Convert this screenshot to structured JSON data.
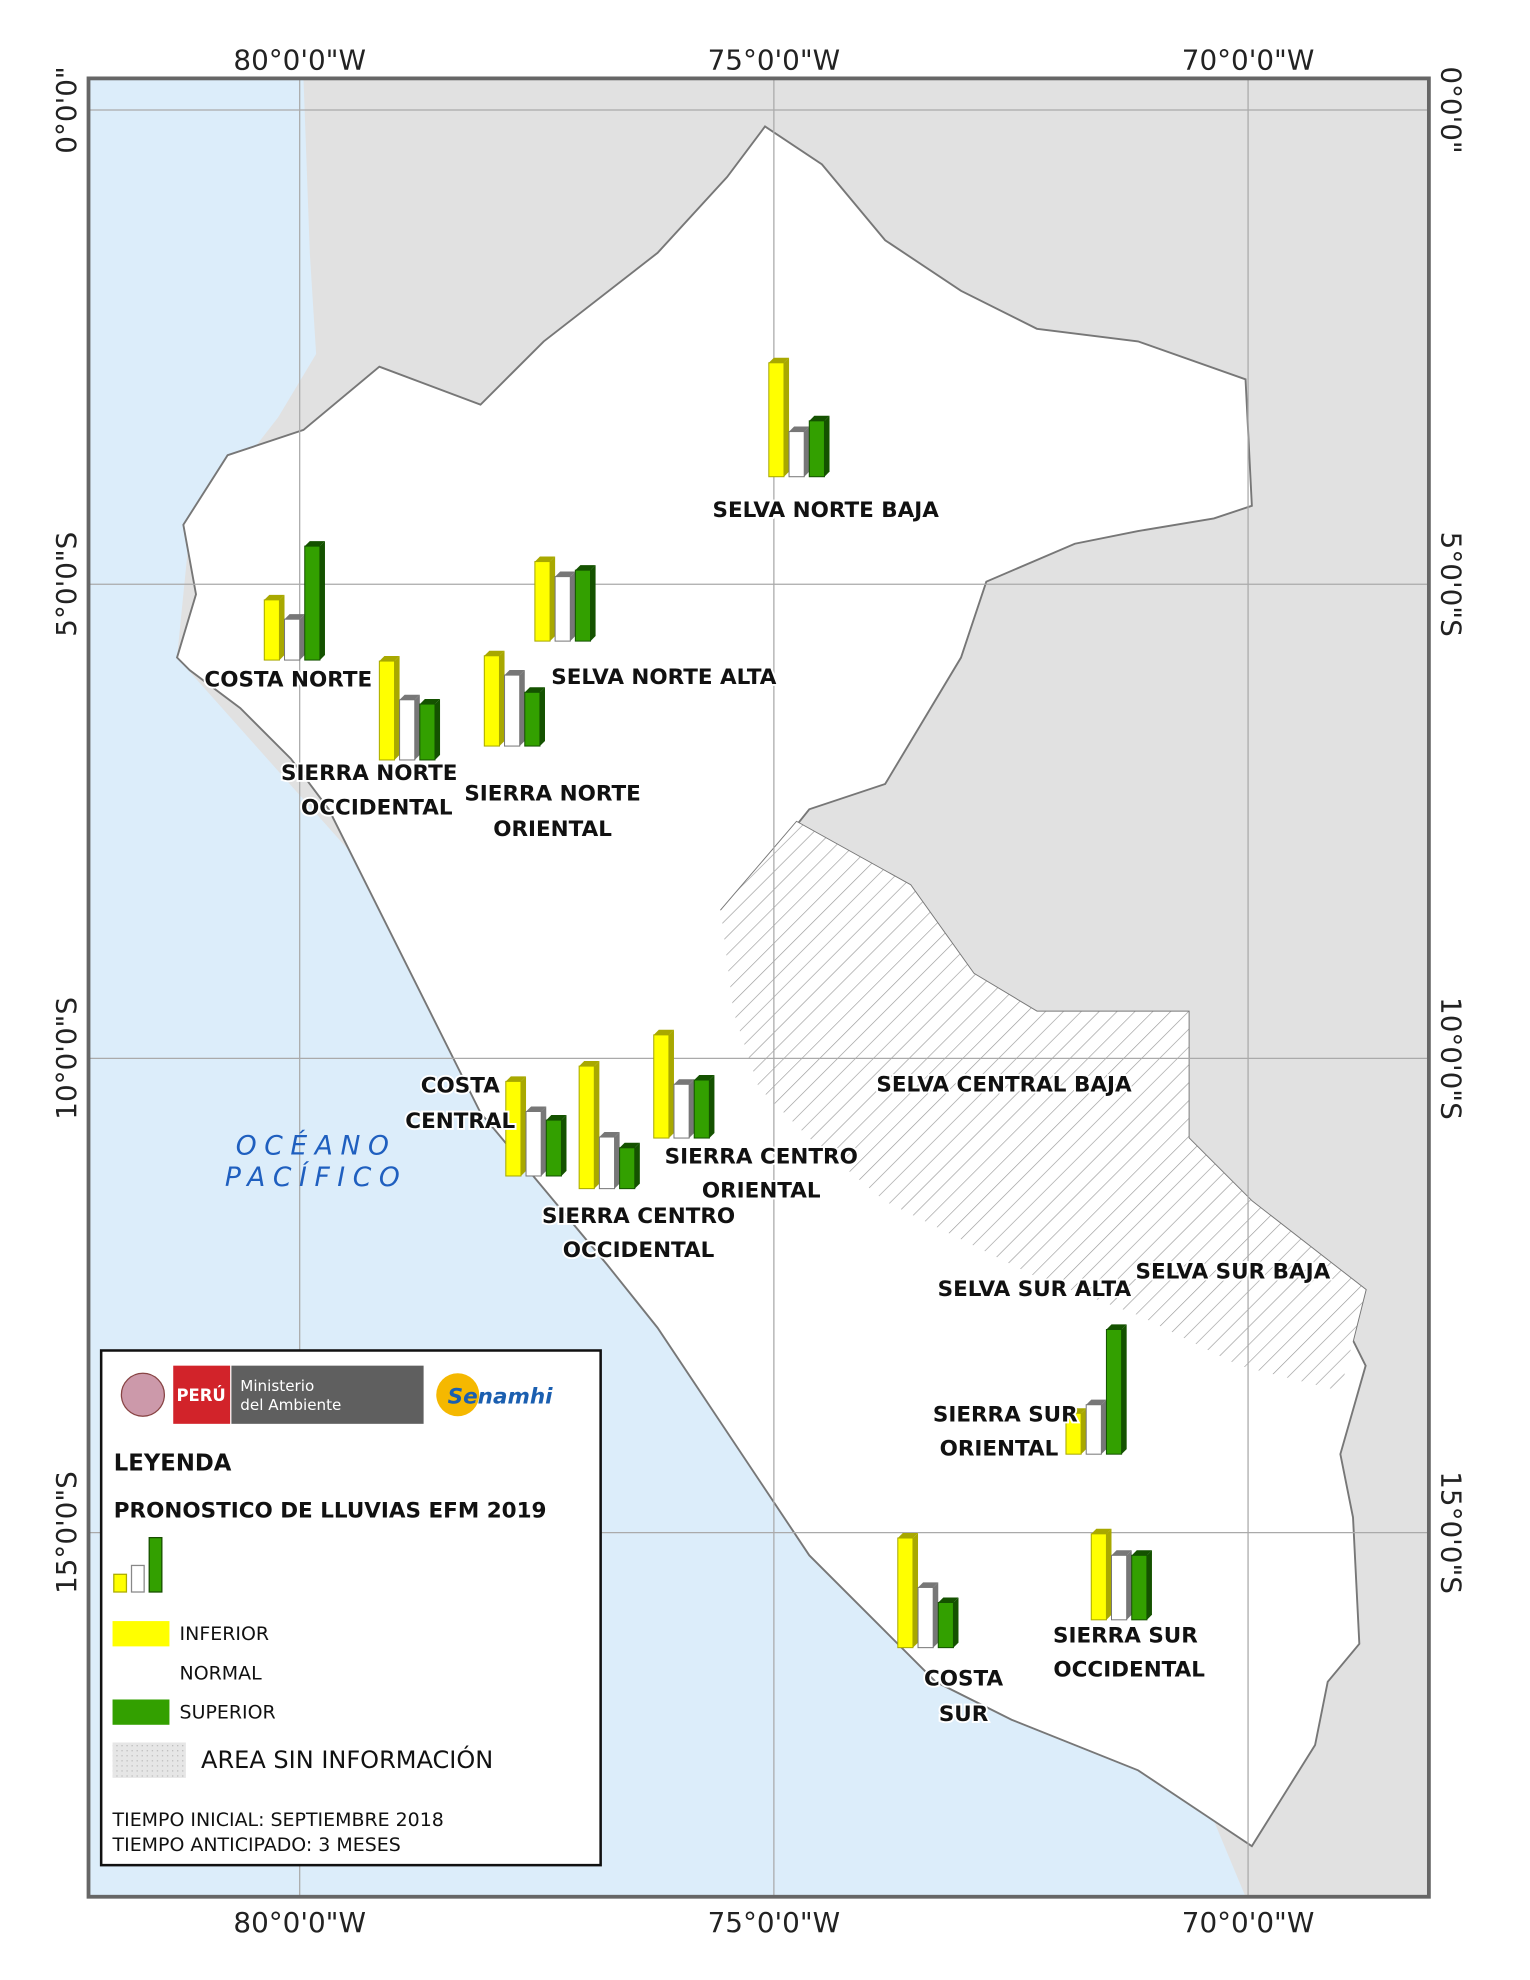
{
  "map": {
    "lon_labels": [
      "80°0'0\"W",
      "75°0'0\"W",
      "70°0'0\"W"
    ],
    "lat_labels": [
      "0°0'0\"",
      "5°0'0\"S",
      "10°0'0\"S",
      "15°0'0\"S"
    ],
    "ocean": [
      "OCÉANO",
      "PACÍFICO"
    ],
    "regions": [
      {
        "label": [
          "COSTA NORTE"
        ],
        "values": [
          28,
          19,
          53
        ]
      },
      {
        "label": [
          "SELVA NORTE ALTA"
        ],
        "values": [
          37,
          30,
          33
        ]
      },
      {
        "label": [
          "SIERRA NORTE",
          "OCCIDENTAL"
        ],
        "values": [
          46,
          28,
          26
        ]
      },
      {
        "label": [
          "SIERRA NORTE",
          "ORIENTAL"
        ],
        "values": [
          42,
          33,
          25
        ]
      },
      {
        "label": [
          "SELVA NORTE BAJA"
        ],
        "values": [
          53,
          21,
          26
        ]
      },
      {
        "label": [
          "COSTA",
          "CENTRAL"
        ],
        "values": [
          44,
          30,
          26
        ]
      },
      {
        "label": [
          "SIERRA CENTRO",
          "OCCIDENTAL"
        ],
        "values": [
          57,
          24,
          19
        ]
      },
      {
        "label": [
          "SIERRA CENTRO",
          "ORIENTAL"
        ],
        "values": [
          48,
          25,
          27
        ]
      },
      {
        "label": [
          "SIERRA SUR",
          "ORIENTAL"
        ],
        "values": [
          19,
          23,
          58
        ]
      },
      {
        "label": [
          "COSTA",
          "SUR"
        ],
        "values": [
          51,
          28,
          21
        ]
      },
      {
        "label": [
          "SIERRA SUR",
          "OCCIDENTAL"
        ],
        "values": [
          40,
          30,
          30
        ]
      },
      {
        "label": [
          "SELVA CENTRAL BAJA"
        ]
      },
      {
        "label": [
          "SELVA SUR ALTA"
        ]
      },
      {
        "label": [
          "SELVA SUR BAJA"
        ]
      }
    ],
    "legend": {
      "logo_peru": "PERÚ",
      "logo_ministry": [
        "Ministerio",
        "del Ambiente"
      ],
      "logo_senamhi": "Senamhi",
      "title": "LEYENDA",
      "subtitle": "PRONOSTICO DE LLUVIAS EFM 2019",
      "categories": [
        {
          "name": "INFERIOR",
          "color": "#ffff00"
        },
        {
          "name": "NORMAL",
          "color": "#ffffff"
        },
        {
          "name": "SUPERIOR",
          "color": "#33a000"
        }
      ],
      "no_data": "AREA SIN INFORMACIÓN",
      "notes": [
        "TIEMPO INICIAL: SEPTIEMBRE 2018",
        "TIEMPO ANTICIPADO: 3 MESES"
      ]
    }
  }
}
